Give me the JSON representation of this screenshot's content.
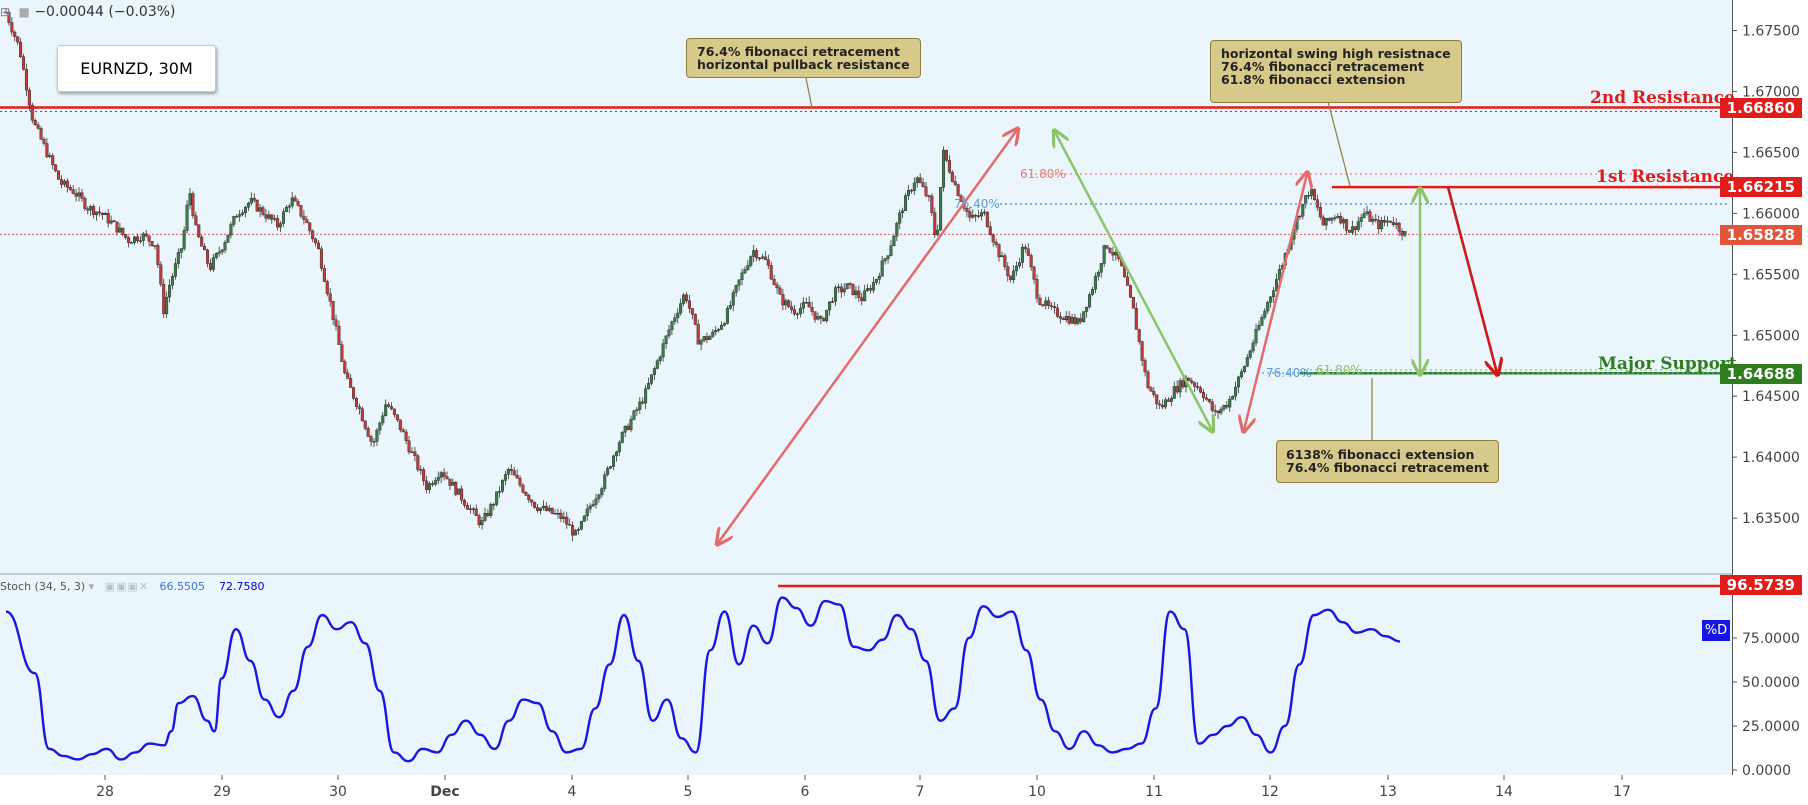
{
  "header": {
    "change_text": "−0.00044 (−0.03%)"
  },
  "symbol_label": "EURNZD, 30M",
  "colors": {
    "background": "#eaf6fb",
    "resistance": "#e21b1b",
    "support": "#2f7d1e",
    "candle_up": "#3c7a4c",
    "candle_down": "#c23a3a",
    "fib_red": "#e97a7a",
    "fib_blue": "#5b9bd8",
    "fib_green": "#8fc26b",
    "stoch_line": "#1818e0",
    "annotation_bg": "#d6c98a"
  },
  "annotations": [
    {
      "lines": [
        "76.4% fibonacci retracement",
        "horizontal pullback resistance"
      ]
    },
    {
      "lines": [
        "horizontal swing high resistnace",
        "76.4% fibonacci retracement",
        "61.8% fibonacci extension"
      ]
    },
    {
      "lines": [
        "6138% fibonacci extension",
        "76.4% fibonacci retracement"
      ]
    }
  ],
  "levels": {
    "second_resistance": {
      "label": "2nd Resistance",
      "price": "1.66860"
    },
    "first_resistance": {
      "label": "1st Resistance",
      "price": "1.66215"
    },
    "last_price": {
      "price": "1.65828"
    },
    "major_support": {
      "label": "Major Support",
      "price": "1.64688"
    }
  },
  "fib_labels": {
    "top_618": "61.80%",
    "top_764": "76.40%",
    "bottom_764": "76.40%",
    "bottom_618": "61.80%"
  },
  "indicator": {
    "name": "Stoch (34, 5, 3)",
    "value1": "66.5505",
    "value2": "72.7580",
    "high_level": "96.5739",
    "d_badge": "%D"
  },
  "chart_data": [
    {
      "type": "line",
      "title": "EURNZD, 30M",
      "y_ticks": [
        "1.67500",
        "1.67000",
        "1.66500",
        "1.66000",
        "1.65500",
        "1.65000",
        "1.64500",
        "1.64000",
        "1.63500"
      ],
      "x_ticks": [
        "28",
        "29",
        "30",
        "Dec",
        "4",
        "5",
        "6",
        "7",
        "10",
        "11",
        "12",
        "13",
        "14",
        "17"
      ],
      "ylim": [
        1.6305,
        1.6775
      ],
      "series": [
        {
          "values": [
            [
              0,
              1.6765
            ],
            [
              1,
              1.6735
            ],
            [
              2,
              1.6675
            ],
            [
              3,
              1.665
            ],
            [
              4,
              1.6625
            ],
            [
              5,
              1.6618
            ],
            [
              6,
              1.6605
            ],
            [
              7,
              1.66
            ],
            [
              8,
              1.659
            ],
            [
              9,
              1.6578
            ],
            [
              10,
              1.6582
            ],
            [
              11,
              1.6575
            ],
            [
              11.6,
              1.652
            ],
            [
              12,
              1.654
            ],
            [
              13,
              1.6575
            ],
            [
              13.5,
              1.662
            ],
            [
              14,
              1.6585
            ],
            [
              15,
              1.6555
            ],
            [
              16,
              1.6575
            ],
            [
              17,
              1.66
            ],
            [
              18,
              1.661
            ],
            [
              19,
              1.66
            ],
            [
              20,
              1.659
            ],
            [
              21,
              1.6612
            ],
            [
              22,
              1.6595
            ],
            [
              23,
              1.657
            ],
            [
              24,
              1.652
            ],
            [
              25,
              1.6465
            ],
            [
              26,
              1.644
            ],
            [
              27,
              1.641
            ],
            [
              28,
              1.6445
            ],
            [
              29,
              1.6425
            ],
            [
              30,
              1.64
            ],
            [
              31,
              1.6375
            ],
            [
              32,
              1.639
            ],
            [
              33,
              1.6375
            ],
            [
              34,
              1.636
            ],
            [
              35,
              1.6345
            ],
            [
              36,
              1.6365
            ],
            [
              37,
              1.639
            ],
            [
              38,
              1.6375
            ],
            [
              39,
              1.636
            ],
            [
              40,
              1.6355
            ],
            [
              41,
              1.635
            ],
            [
              42,
              1.6335
            ],
            [
              43,
              1.636
            ],
            [
              44,
              1.638
            ],
            [
              45,
              1.641
            ],
            [
              46,
              1.643
            ],
            [
              47,
              1.645
            ],
            [
              48,
              1.648
            ],
            [
              49,
              1.651
            ],
            [
              50,
              1.6535
            ],
            [
              51,
              1.6495
            ],
            [
              52,
              1.65
            ],
            [
              53,
              1.6515
            ],
            [
              54,
              1.6545
            ],
            [
              55,
              1.657
            ],
            [
              56,
              1.656
            ],
            [
              57,
              1.653
            ],
            [
              58,
              1.652
            ],
            [
              59,
              1.6525
            ],
            [
              60,
              1.651
            ],
            [
              61,
              1.6535
            ],
            [
              62,
              1.654
            ],
            [
              63,
              1.653
            ],
            [
              64,
              1.6545
            ],
            [
              65,
              1.657
            ],
            [
              66,
              1.6605
            ],
            [
              67,
              1.663
            ],
            [
              68,
              1.661
            ],
            [
              68.5,
              1.6575
            ],
            [
              69,
              1.665
            ],
            [
              70,
              1.662
            ],
            [
              71,
              1.6595
            ],
            [
              72,
              1.66
            ],
            [
              73,
              1.657
            ],
            [
              74,
              1.6545
            ],
            [
              75,
              1.6575
            ],
            [
              76,
              1.653
            ],
            [
              77,
              1.652
            ],
            [
              78,
              1.6515
            ],
            [
              79,
              1.651
            ],
            [
              80,
              1.654
            ],
            [
              81,
              1.6575
            ],
            [
              82,
              1.656
            ],
            [
              83,
              1.652
            ],
            [
              84,
              1.646
            ],
            [
              85,
              1.644
            ],
            [
              86,
              1.6455
            ],
            [
              87,
              1.6465
            ],
            [
              88,
              1.6455
            ],
            [
              89,
              1.6435
            ],
            [
              90,
              1.6445
            ],
            [
              91,
              1.647
            ],
            [
              92,
              1.65
            ],
            [
              93,
              1.653
            ],
            [
              94,
              1.656
            ],
            [
              95,
              1.6595
            ],
            [
              96,
              1.662
            ],
            [
              97,
              1.659
            ],
            [
              98,
              1.66
            ],
            [
              99,
              1.6585
            ],
            [
              100,
              1.66
            ],
            [
              101,
              1.659
            ],
            [
              102,
              1.6595
            ],
            [
              103,
              1.6583
            ]
          ]
        }
      ]
    },
    {
      "type": "line",
      "title": "Stoch (34, 5, 3)",
      "y_ticks": [
        "75.0000",
        "50.0000",
        "25.0000",
        "0.0000"
      ],
      "ylim": [
        0,
        100
      ],
      "series": [
        {
          "name": "%D",
          "values": [
            [
              0,
              90
            ],
            [
              2,
              55
            ],
            [
              3,
              12
            ],
            [
              4,
              8
            ],
            [
              5,
              6
            ],
            [
              6,
              9
            ],
            [
              7,
              12
            ],
            [
              8,
              6
            ],
            [
              9,
              10
            ],
            [
              10,
              15
            ],
            [
              11,
              14
            ],
            [
              11.5,
              22
            ],
            [
              12,
              38
            ],
            [
              13,
              42
            ],
            [
              14,
              28
            ],
            [
              14.5,
              22
            ],
            [
              15,
              52
            ],
            [
              16,
              80
            ],
            [
              17,
              62
            ],
            [
              18,
              40
            ],
            [
              19,
              30
            ],
            [
              20,
              45
            ],
            [
              21,
              70
            ],
            [
              22,
              88
            ],
            [
              23,
              80
            ],
            [
              24,
              84
            ],
            [
              25,
              72
            ],
            [
              26,
              45
            ],
            [
              27,
              10
            ],
            [
              28,
              5
            ],
            [
              29,
              12
            ],
            [
              30,
              10
            ],
            [
              31,
              20
            ],
            [
              32,
              28
            ],
            [
              33,
              20
            ],
            [
              34,
              12
            ],
            [
              35,
              28
            ],
            [
              36,
              40
            ],
            [
              37,
              38
            ],
            [
              38,
              22
            ],
            [
              39,
              10
            ],
            [
              40,
              12
            ],
            [
              41,
              35
            ],
            [
              42,
              60
            ],
            [
              43,
              88
            ],
            [
              44,
              62
            ],
            [
              45,
              28
            ],
            [
              46,
              40
            ],
            [
              47,
              18
            ],
            [
              48,
              10
            ],
            [
              49,
              68
            ],
            [
              50,
              90
            ],
            [
              51,
              60
            ],
            [
              52,
              82
            ],
            [
              53,
              72
            ],
            [
              54,
              98
            ],
            [
              55,
              92
            ],
            [
              56,
              82
            ],
            [
              57,
              96
            ],
            [
              58,
              94
            ],
            [
              59,
              70
            ],
            [
              60,
              68
            ],
            [
              61,
              74
            ],
            [
              62,
              88
            ],
            [
              63,
              80
            ],
            [
              64,
              62
            ],
            [
              65,
              28
            ],
            [
              66,
              35
            ],
            [
              67,
              75
            ],
            [
              68,
              93
            ],
            [
              69,
              87
            ],
            [
              70,
              90
            ],
            [
              71,
              68
            ],
            [
              72,
              40
            ],
            [
              73,
              22
            ],
            [
              74,
              12
            ],
            [
              75,
              22
            ],
            [
              76,
              14
            ],
            [
              77,
              10
            ],
            [
              78,
              12
            ],
            [
              79,
              15
            ],
            [
              80,
              35
            ],
            [
              81,
              90
            ],
            [
              82,
              80
            ],
            [
              83,
              15
            ],
            [
              84,
              20
            ],
            [
              85,
              25
            ],
            [
              86,
              30
            ],
            [
              87,
              20
            ],
            [
              88,
              10
            ],
            [
              89,
              25
            ],
            [
              90,
              60
            ],
            [
              91,
              88
            ],
            [
              92,
              91
            ],
            [
              93,
              84
            ],
            [
              94,
              78
            ],
            [
              95,
              80
            ],
            [
              96,
              76
            ],
            [
              97,
              73
            ]
          ]
        }
      ]
    }
  ]
}
